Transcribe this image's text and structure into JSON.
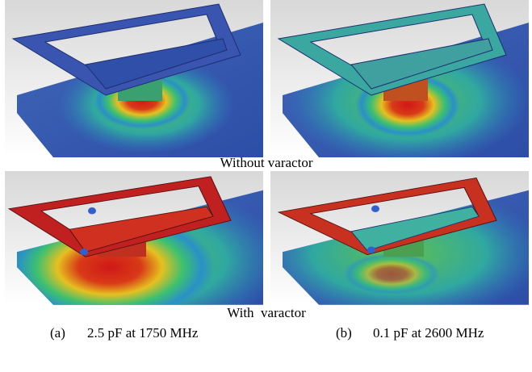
{
  "figure": {
    "row_captions": [
      "Without varactor",
      "With  varactor"
    ],
    "subcaptions": [
      {
        "label": "(a)",
        "text": "2.5 pF at 1750 MHz"
      },
      {
        "label": "(b)",
        "text": "0.1 pF at 2600 MHz"
      }
    ]
  }
}
